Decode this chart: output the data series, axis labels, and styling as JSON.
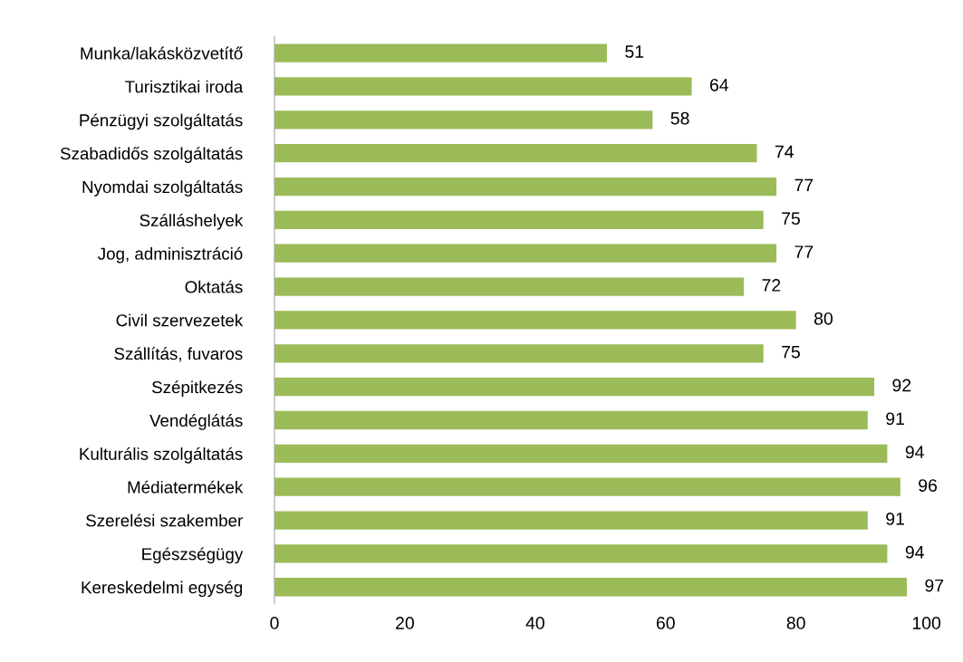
{
  "chart_data": {
    "type": "bar",
    "orientation": "horizontal",
    "categories": [
      "Munka/lakásközvetítő",
      "Turisztikai iroda",
      "Pénzügyi szolgáltatás",
      "Szabadidős szolgáltatás",
      "Nyomdai szolgáltatás",
      "Szálláshelyek",
      "Jog, adminisztráció",
      "Oktatás",
      "Civil szervezetek",
      "Szállítás, fuvaros",
      "Szépitkezés",
      "Vendéglátás",
      "Kulturális szolgáltatás",
      "Médiatermékek",
      "Szerelési szakember",
      "Egészségügy",
      "Kereskedelmi egység"
    ],
    "values": [
      51,
      64,
      58,
      74,
      77,
      75,
      77,
      72,
      80,
      75,
      92,
      91,
      94,
      96,
      91,
      94,
      97
    ],
    "color": "#9bbb59",
    "data_labels": true,
    "grid": false,
    "xlim": [
      0,
      100
    ],
    "xticks": [
      0,
      20,
      40,
      60,
      80,
      100
    ]
  }
}
